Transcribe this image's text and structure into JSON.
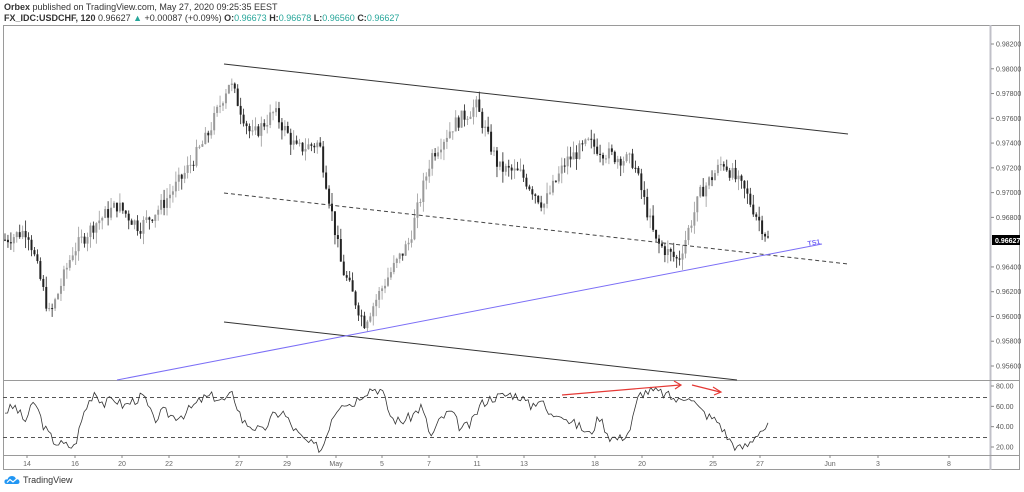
{
  "header": {
    "publisher": "Orbex",
    "published_text": " published on TradingView.com, May 27, 2020 09:25:35 EEST",
    "symbol": "FX_IDC:USDCHF, 120",
    "last": "0.96627",
    "change": "+0.00087 (+0.09%)",
    "open_label": "O:",
    "open": "0.96673",
    "high_label": "H:",
    "high": "0.96678",
    "low_label": "L:",
    "low": "0.96560",
    "close_label": "C:",
    "close": "0.96627"
  },
  "price_axis": {
    "labels": [
      "0.98200",
      "0.98000",
      "0.97800",
      "0.97600",
      "0.97400",
      "0.97200",
      "0.97000",
      "0.96800",
      "0.96400",
      "0.96200",
      "0.96000",
      "0.95800",
      "0.95600"
    ],
    "current_price": "0.96627"
  },
  "oscillator_axis": {
    "labels": [
      "80.00",
      "60.00",
      "40.00",
      "20.00"
    ]
  },
  "time_axis": {
    "labels": [
      "14",
      "16",
      "20",
      "22",
      "27",
      "29",
      "May",
      "5",
      "7",
      "11",
      "13",
      "18",
      "20",
      "25",
      "27",
      "Jun",
      "3",
      "8"
    ]
  },
  "annotations": {
    "trendline_label": "TS1"
  },
  "footer": {
    "brand": "TradingView"
  },
  "colors": {
    "candles": "#333333",
    "trendline_ts1": "#7b6ef6",
    "channel": "#333333",
    "divergence_arrows": "#e53935",
    "teal": "#26a69a",
    "price_tag_bg": "#000000"
  },
  "chart_data": {
    "type": "candlestick",
    "title": "FX_IDC:USDCHF, 120",
    "xlabel": "",
    "ylabel": "Price",
    "ylim": [
      0.955,
      0.983
    ],
    "x_ticks": [
      "14",
      "16",
      "20",
      "22",
      "27",
      "29",
      "May",
      "5",
      "7",
      "11",
      "13",
      "18",
      "20",
      "25",
      "27",
      "Jun",
      "3",
      "8"
    ],
    "y_ticks": [
      0.982,
      0.98,
      0.978,
      0.976,
      0.974,
      0.972,
      0.97,
      0.968,
      0.964,
      0.962,
      0.96,
      0.958,
      0.956
    ],
    "approx_close_path": [
      {
        "x": "Apr 13",
        "y": 0.9662
      },
      {
        "x": "Apr 14",
        "y": 0.967
      },
      {
        "x": "Apr 15",
        "y": 0.96
      },
      {
        "x": "Apr 16",
        "y": 0.9652
      },
      {
        "x": "Apr 17",
        "y": 0.9675
      },
      {
        "x": "Apr 20",
        "y": 0.969
      },
      {
        "x": "Apr 21",
        "y": 0.9672
      },
      {
        "x": "Apr 22",
        "y": 0.969
      },
      {
        "x": "Apr 23",
        "y": 0.9715
      },
      {
        "x": "Apr 24",
        "y": 0.9745
      },
      {
        "x": "Apr 26",
        "y": 0.979
      },
      {
        "x": "Apr 27",
        "y": 0.9745
      },
      {
        "x": "Apr 28",
        "y": 0.9765
      },
      {
        "x": "Apr 29",
        "y": 0.9735
      },
      {
        "x": "Apr 30",
        "y": 0.974
      },
      {
        "x": "May 1",
        "y": 0.964
      },
      {
        "x": "May 3",
        "y": 0.9595
      },
      {
        "x": "May 4",
        "y": 0.963
      },
      {
        "x": "May 5",
        "y": 0.966
      },
      {
        "x": "May 6",
        "y": 0.973
      },
      {
        "x": "May 7",
        "y": 0.9755
      },
      {
        "x": "May 8",
        "y": 0.977
      },
      {
        "x": "May 11",
        "y": 0.972
      },
      {
        "x": "May 12",
        "y": 0.9715
      },
      {
        "x": "May 13",
        "y": 0.969
      },
      {
        "x": "May 14",
        "y": 0.9725
      },
      {
        "x": "May 15",
        "y": 0.974
      },
      {
        "x": "May 18",
        "y": 0.973
      },
      {
        "x": "May 19",
        "y": 0.9725
      },
      {
        "x": "May 20",
        "y": 0.966
      },
      {
        "x": "May 21",
        "y": 0.9645
      },
      {
        "x": "May 22",
        "y": 0.97
      },
      {
        "x": "May 25",
        "y": 0.9725
      },
      {
        "x": "May 26",
        "y": 0.97
      },
      {
        "x": "May 27",
        "y": 0.96627
      }
    ],
    "overlays": [
      {
        "name": "Upper channel",
        "from": {
          "x": "Apr 26",
          "y": 0.9803
        },
        "to": {
          "x": "Jun 2",
          "y": 0.9747
        }
      },
      {
        "name": "Mid channel (dashed)",
        "from": {
          "x": "Apr 26",
          "y": 0.97
        },
        "to": {
          "x": "Jun 2",
          "y": 0.9643
        }
      },
      {
        "name": "Lower channel",
        "from": {
          "x": "Apr 26",
          "y": 0.9595
        },
        "to": {
          "x": "May 28",
          "y": 0.9551
        }
      },
      {
        "name": "TS1 trendline",
        "color": "#7b6ef6",
        "from": {
          "x": "Apr 20",
          "y": 0.955
        },
        "to": {
          "x": "May 28",
          "y": 0.9657
        }
      }
    ],
    "oscillator": {
      "ylim": [
        10,
        90
      ],
      "y_ticks": [
        80,
        60,
        40,
        20
      ],
      "levels": [
        70,
        30
      ],
      "approx_values": [
        55,
        60,
        45,
        65,
        38,
        25,
        22,
        20,
        55,
        75,
        62,
        68,
        60,
        66,
        70,
        46,
        55,
        50,
        52,
        60,
        68,
        70,
        65,
        72,
        45,
        40,
        35,
        50,
        55,
        40,
        28,
        22,
        18,
        50,
        65,
        62,
        72,
        78,
        76,
        48,
        45,
        50,
        60,
        30,
        48,
        55,
        38,
        42,
        62,
        68,
        70,
        72,
        70,
        60,
        68,
        50,
        55,
        45,
        40,
        32,
        50,
        30,
        28,
        35,
        72,
        75,
        74,
        70,
        65,
        72,
        58,
        50,
        45,
        28,
        18,
        22,
        35,
        40
      ],
      "annotations": [
        {
          "type": "arrow",
          "color": "#e53935",
          "from": {
            "x": "May 15",
            "y": 72
          },
          "to": {
            "x": "May 22",
            "y": 80
          }
        },
        {
          "type": "arrow",
          "color": "#e53935",
          "from": {
            "x": "May 22",
            "y": 79
          },
          "to": {
            "x": "May 26",
            "y": 73
          }
        }
      ]
    }
  }
}
